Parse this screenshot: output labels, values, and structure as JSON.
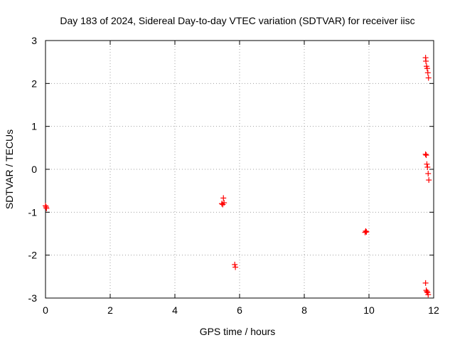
{
  "chart_data": {
    "type": "scatter",
    "title": "Day 183 of 2024, Sidereal Day-to-day VTEC variation (SDTVAR) for receiver iisc",
    "xlabel": "GPS time / hours",
    "ylabel": "SDTVAR / TECUs",
    "xlim": [
      0,
      12
    ],
    "ylim": [
      -3,
      3
    ],
    "xticks": [
      0,
      2,
      4,
      6,
      8,
      10,
      12
    ],
    "yticks": [
      -3,
      -2,
      -1,
      0,
      1,
      2,
      3
    ],
    "xtick_labels": [
      "0",
      "2",
      "4",
      "6",
      "8",
      "10",
      "12"
    ],
    "ytick_labels": [
      "-3",
      "-2",
      "-1",
      "0",
      "1",
      "2",
      "3"
    ],
    "grid": true,
    "marker": "+",
    "color": "#ff0000",
    "series": [
      {
        "name": "SDTVAR",
        "points": [
          [
            0.0,
            -0.85
          ],
          [
            0.02,
            -0.88
          ],
          [
            0.03,
            -0.91
          ],
          [
            5.45,
            -0.8
          ],
          [
            5.48,
            -0.82
          ],
          [
            5.5,
            -0.67
          ],
          [
            5.52,
            -0.78
          ],
          [
            5.85,
            -2.22
          ],
          [
            5.87,
            -2.28
          ],
          [
            9.88,
            -1.47
          ],
          [
            9.9,
            -1.44
          ],
          [
            9.92,
            -1.46
          ],
          [
            11.75,
            2.6
          ],
          [
            11.76,
            2.52
          ],
          [
            11.78,
            2.4
          ],
          [
            11.8,
            2.35
          ],
          [
            11.82,
            2.25
          ],
          [
            11.84,
            2.13
          ],
          [
            11.75,
            0.35
          ],
          [
            11.77,
            0.33
          ],
          [
            11.79,
            0.12
          ],
          [
            11.81,
            0.05
          ],
          [
            11.83,
            -0.1
          ],
          [
            11.85,
            -0.25
          ],
          [
            11.75,
            -2.65
          ],
          [
            11.77,
            -2.82
          ],
          [
            11.79,
            -2.85
          ],
          [
            11.81,
            -2.87
          ],
          [
            11.83,
            -2.92
          ]
        ]
      }
    ]
  }
}
